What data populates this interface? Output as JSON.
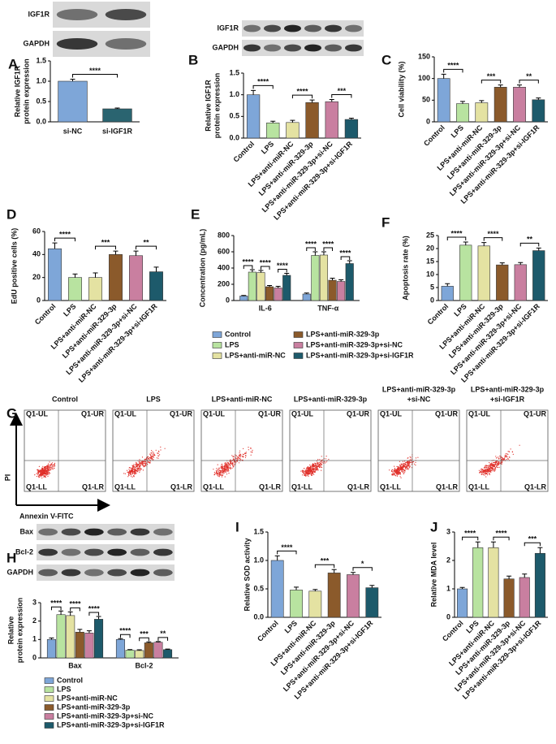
{
  "chart_data": [
    {
      "type": "bar",
      "panel": "A",
      "blots": [
        "IGF1R",
        "GAPDH"
      ],
      "ylabel": [
        "Relative IGF1R",
        "protein expression"
      ],
      "categories": [
        "si-NC",
        "si-IGF1R"
      ],
      "values": [
        1.0,
        0.32
      ],
      "errors": [
        0.05,
        0.02
      ],
      "colors": [
        "#7ea6d8",
        "#2a6470"
      ],
      "ylim": [
        0,
        1.5
      ],
      "yticks": [
        {
          "value": 0,
          "label": "0.0"
        },
        0.5,
        {
          "value": 1,
          "label": "1.0"
        },
        1.5
      ],
      "annotations": [
        "****"
      ]
    },
    {
      "type": "bar",
      "panel": "B",
      "blots": [
        "IGF1R",
        "GAPDH"
      ],
      "ylabel": [
        "Relative IGF1R",
        "protein expression"
      ],
      "categories": [
        "Control",
        "LPS",
        "LPS+anti-miR-NC",
        "LPS+anti-miR-329-3p",
        "LPS+anti-miR-329-3p+si-NC",
        "LPS+anti-miR-329-3p+si-IGF1R"
      ],
      "values": [
        1.0,
        0.35,
        0.36,
        0.82,
        0.84,
        0.43
      ],
      "errors": [
        0.1,
        0.04,
        0.05,
        0.06,
        0.05,
        0.03
      ],
      "colors": [
        "#7ea6d8",
        "#b8e3a0",
        "#e4e2a2",
        "#8b5a2b",
        "#c97fa0",
        "#1d5a6b"
      ],
      "ylim": [
        0,
        1.5
      ],
      "yticks": [
        {
          "value": 0,
          "label": "0.0"
        },
        0.5,
        {
          "value": 1,
          "label": "1.0"
        },
        1.5
      ],
      "annotations": [
        "****",
        "****",
        "***"
      ]
    },
    {
      "type": "bar",
      "panel": "C",
      "ylabel": [
        "Cell viability (%)"
      ],
      "categories": [
        "Control",
        "LPS",
        "LPS+anti-miR-NC",
        "LPS+anti-miR-329-3p",
        "LPS+anti-miR-329-3p+si-NC",
        "LPS+anti-miR-329-3p+si-IGF1R"
      ],
      "values": [
        100,
        42,
        44,
        80,
        80,
        51
      ],
      "errors": [
        10,
        5,
        5,
        5,
        5,
        4
      ],
      "colors": [
        "#7ea6d8",
        "#b8e3a0",
        "#e4e2a2",
        "#8b5a2b",
        "#c97fa0",
        "#1d5a6b"
      ],
      "ylim": [
        0,
        150
      ],
      "yticks": [
        0,
        50,
        100,
        150
      ],
      "annotations": [
        "****",
        "***",
        "**"
      ]
    },
    {
      "type": "bar",
      "panel": "D",
      "ylabel": [
        "EdU positive cells (%)"
      ],
      "categories": [
        "Control",
        "LPS",
        "LPS+anti-miR-NC",
        "LPS+anti-miR-329-3p",
        "LPS+anti-miR-329-3p+si-NC",
        "LPS+anti-miR-329-3p+si-IGF1R"
      ],
      "values": [
        45,
        20,
        20,
        40,
        39,
        25
      ],
      "errors": [
        5,
        3,
        4,
        3,
        4,
        4
      ],
      "colors": [
        "#7ea6d8",
        "#b8e3a0",
        "#e4e2a2",
        "#8b5a2b",
        "#c97fa0",
        "#1d5a6b"
      ],
      "ylim": [
        0,
        60
      ],
      "yticks": [
        0,
        20,
        40,
        60
      ],
      "annotations": [
        "****",
        "***",
        "**"
      ]
    },
    {
      "type": "grouped_bar",
      "panel": "E",
      "ylabel": [
        "Concentration (pg/mL)"
      ],
      "categories": [
        "IL-6",
        "TNF-α"
      ],
      "series": [
        {
          "name": "Control",
          "color": "#7ea6d8",
          "values": [
            55,
            80
          ],
          "errors": [
            8,
            12
          ]
        },
        {
          "name": "LPS",
          "color": "#b8e3a0",
          "values": [
            350,
            555
          ],
          "errors": [
            30,
            45
          ]
        },
        {
          "name": "LPS+anti-miR-NC",
          "color": "#e4e2a2",
          "values": [
            345,
            560
          ],
          "errors": [
            25,
            40
          ]
        },
        {
          "name": "LPS+anti-miR-329-3p",
          "color": "#8b5a2b",
          "values": [
            170,
            250
          ],
          "errors": [
            15,
            25
          ]
        },
        {
          "name": "LPS+anti-miR-329-3p+si-NC",
          "color": "#c97fa0",
          "values": [
            155,
            235
          ],
          "errors": [
            20,
            20
          ]
        },
        {
          "name": "LPS+anti-miR-329-3p+si-IGF1R",
          "color": "#1d5a6b",
          "values": [
            310,
            455
          ],
          "errors": [
            25,
            35
          ]
        }
      ],
      "ylim": [
        0,
        800
      ],
      "yticks": [
        0,
        200,
        400,
        600,
        800
      ],
      "annotations": [
        [
          "****",
          "****",
          "****"
        ],
        [
          "****",
          "****",
          "****"
        ]
      ]
    },
    {
      "type": "bar",
      "panel": "F",
      "ylabel": [
        "Apoptosis rate (%)"
      ],
      "categories": [
        "Control",
        "LPS",
        "LPS+anti-miR-NC",
        "LPS+anti-miR-329-3p",
        "LPS+anti-miR-329-3p+si-NC",
        "LPS+anti-miR-329-3p+si-IGF1R"
      ],
      "values": [
        5.5,
        21.3,
        21.0,
        13.7,
        13.8,
        19.2
      ],
      "errors": [
        1.0,
        1.2,
        1.3,
        0.8,
        0.8,
        1.0
      ],
      "colors": [
        "#7ea6d8",
        "#b8e3a0",
        "#e4e2a2",
        "#8b5a2b",
        "#c97fa0",
        "#1d5a6b"
      ],
      "ylim": [
        0,
        25
      ],
      "yticks": [
        0,
        5,
        10,
        15,
        20,
        25
      ],
      "annotations": [
        "****",
        "****",
        "**"
      ]
    },
    {
      "type": "grouped_bar",
      "panel": "H",
      "blots": [
        "Bax",
        "Bcl-2",
        "GAPDH"
      ],
      "ylabel": [
        "Relative",
        "protein expression"
      ],
      "categories": [
        "Bax",
        "Bcl-2"
      ],
      "series": [
        {
          "name": "Control",
          "color": "#7ea6d8",
          "values": [
            1.0,
            1.0
          ],
          "errors": [
            0.08,
            0.05
          ]
        },
        {
          "name": "LPS",
          "color": "#b8e3a0",
          "values": [
            2.35,
            0.42
          ],
          "errors": [
            0.2,
            0.03
          ]
        },
        {
          "name": "LPS+anti-miR-NC",
          "color": "#e4e2a2",
          "values": [
            2.3,
            0.4
          ],
          "errors": [
            0.2,
            0.04
          ]
        },
        {
          "name": "LPS+anti-miR-329-3p",
          "color": "#8b5a2b",
          "values": [
            1.4,
            0.82
          ],
          "errors": [
            0.15,
            0.05
          ]
        },
        {
          "name": "LPS+anti-miR-329-3p+si-NC",
          "color": "#c97fa0",
          "values": [
            1.35,
            0.85
          ],
          "errors": [
            0.12,
            0.04
          ]
        },
        {
          "name": "LPS+anti-miR-329-3p+si-IGF1R",
          "color": "#1d5a6b",
          "values": [
            2.1,
            0.45
          ],
          "errors": [
            0.15,
            0.03
          ]
        }
      ],
      "ylim": [
        0,
        3
      ],
      "yticks": [
        0,
        1,
        2,
        3
      ],
      "annotations": [
        [
          "****",
          "****",
          "****"
        ],
        [
          "****",
          "***",
          "**"
        ]
      ]
    },
    {
      "type": "bar",
      "panel": "I",
      "ylabel": [
        "Relative SOD activity"
      ],
      "categories": [
        "Control",
        "LPS",
        "LPS+anti-miR-NC",
        "LPS+anti-miR-329-3p",
        "LPS+anti-miR-329-3p+si-NC",
        "LPS+anti-miR-329-3p+si-IGF1R"
      ],
      "values": [
        1.0,
        0.48,
        0.46,
        0.78,
        0.75,
        0.52
      ],
      "errors": [
        0.08,
        0.05,
        0.03,
        0.06,
        0.04,
        0.04
      ],
      "colors": [
        "#7ea6d8",
        "#b8e3a0",
        "#e4e2a2",
        "#8b5a2b",
        "#c97fa0",
        "#1d5a6b"
      ],
      "ylim": [
        0,
        1.5
      ],
      "yticks": [
        {
          "value": 0,
          "label": "0.0"
        },
        0.5,
        {
          "value": 1,
          "label": "1.0"
        },
        1.5
      ],
      "annotations": [
        "****",
        "***",
        "*"
      ]
    },
    {
      "type": "bar",
      "panel": "J",
      "ylabel": [
        "Relative MDA level"
      ],
      "categories": [
        "Control",
        "LPS",
        "LPS+anti-miR-NC",
        "LPS+anti-miR-329-3p",
        "LPS+anti-miR-329-3p+si-NC",
        "LPS+anti-miR-329-3p+si-IGF1R"
      ],
      "values": [
        1.0,
        2.45,
        2.45,
        1.35,
        1.4,
        2.25
      ],
      "errors": [
        0.05,
        0.2,
        0.2,
        0.1,
        0.12,
        0.2
      ],
      "colors": [
        "#7ea6d8",
        "#b8e3a0",
        "#e4e2a2",
        "#8b5a2b",
        "#c97fa0",
        "#1d5a6b"
      ],
      "ylim": [
        0,
        3
      ],
      "yticks": [
        0,
        1,
        2,
        3
      ],
      "annotations": [
        "****",
        "****",
        "***"
      ]
    }
  ],
  "flow": {
    "panel": "G",
    "ylabel": "PI",
    "xlabel": "Annexin V-FITC",
    "titles": [
      [
        "Control"
      ],
      [
        "LPS"
      ],
      [
        "LPS+anti-miR-NC"
      ],
      [
        "LPS+anti-miR-329-3p"
      ],
      [
        "LPS+anti-miR-329-3p",
        "+si-NC"
      ],
      [
        "LPS+anti-miR-329-3p",
        "+si-IGF1R"
      ]
    ],
    "quadrants": [
      "Q1-UL",
      "Q1-UR",
      "Q1-LL",
      "Q1-LR"
    ]
  }
}
